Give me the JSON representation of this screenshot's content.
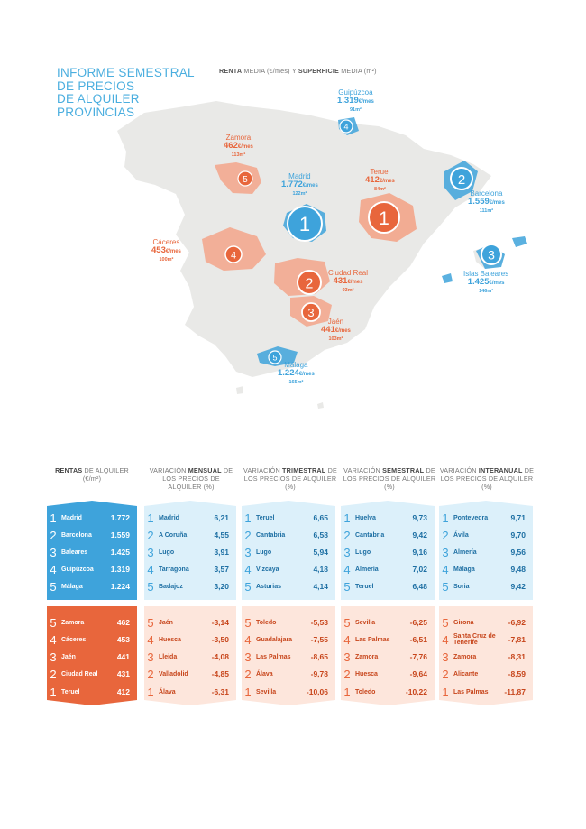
{
  "title_lines": [
    "INFORME SEMESTRAL",
    "DE PRECIOS",
    "DE ALQUILER",
    "PROVINCIAS"
  ],
  "subtitle": {
    "renta": "RENTA",
    "media1": " MEDIA (€/mes) Y ",
    "superficie": "SUPERFICIE",
    "media2": " MEDIA (m²)"
  },
  "colors": {
    "blue": "#3ea3db",
    "orange": "#e8663c",
    "light_blue": "#dcf0fa",
    "light_orange": "#fde6dc",
    "map_gray": "#e9e9e7"
  },
  "map_labels": [
    {
      "id": "guipuzcoa",
      "color": "blue",
      "name": "Guipúzcoa",
      "price": "1.319",
      "unit": "€/mes",
      "size": "91m²",
      "rank": "4"
    },
    {
      "id": "zamora",
      "color": "orange",
      "name": "Zamora",
      "price": "462",
      "unit": "€/mes",
      "size": "113m²",
      "rank": "5"
    },
    {
      "id": "madrid",
      "color": "blue",
      "name": "Madrid",
      "price": "1.772",
      "unit": "€/mes",
      "size": "122m²",
      "rank": "1"
    },
    {
      "id": "teruel",
      "color": "orange",
      "name": "Teruel",
      "price": "412",
      "unit": "€/mes",
      "size": "84m²",
      "rank": "1"
    },
    {
      "id": "barcelona",
      "color": "blue",
      "name": "Barcelona",
      "price": "1.559",
      "unit": "€/mes",
      "size": "111m²",
      "rank": "2"
    },
    {
      "id": "caceres",
      "color": "orange",
      "name": "Cáceres",
      "price": "453",
      "unit": "€/mes",
      "size": "100m²",
      "rank": "4"
    },
    {
      "id": "baleares",
      "color": "blue",
      "name": "Islas Baleares",
      "price": "1.425",
      "unit": "€/mes",
      "size": "146m²",
      "rank": "3"
    },
    {
      "id": "ciudadreal",
      "color": "orange",
      "name": "Ciudad Real",
      "price": "431",
      "unit": "€/mes",
      "size": "93m²",
      "rank": "2"
    },
    {
      "id": "jaen",
      "color": "orange",
      "name": "Jaén",
      "price": "441",
      "unit": "€/mes",
      "size": "103m²",
      "rank": "3"
    },
    {
      "id": "malaga",
      "color": "blue",
      "name": "Málaga",
      "price": "1.224",
      "unit": "€/mes",
      "size": "165m²",
      "rank": "5"
    }
  ],
  "columns": [
    {
      "header": {
        "pre": "",
        "bold": "RENTAS",
        "post": " DE ALQUILER (€/m²)"
      },
      "top": [
        [
          "1",
          "Madrid",
          "1.772"
        ],
        [
          "2",
          "Barcelona",
          "1.559"
        ],
        [
          "3",
          "Baleares",
          "1.425"
        ],
        [
          "4",
          "Guipúzcoa",
          "1.319"
        ],
        [
          "5",
          "Málaga",
          "1.224"
        ]
      ],
      "bottom": [
        [
          "5",
          "Zamora",
          "462"
        ],
        [
          "4",
          "Cáceres",
          "453"
        ],
        [
          "3",
          "Jaén",
          "441"
        ],
        [
          "2",
          "Ciudad Real",
          "431"
        ],
        [
          "1",
          "Teruel",
          "412"
        ]
      ]
    },
    {
      "header": {
        "pre": "VARIACIÓN ",
        "bold": "MENSUAL",
        "post": " DE LOS PRECIOS DE ALQUILER (%)"
      },
      "top": [
        [
          "1",
          "Madrid",
          "6,21"
        ],
        [
          "2",
          "A Coruña",
          "4,55"
        ],
        [
          "3",
          "Lugo",
          "3,91"
        ],
        [
          "4",
          "Tarragona",
          "3,57"
        ],
        [
          "5",
          "Badajoz",
          "3,20"
        ]
      ],
      "bottom": [
        [
          "5",
          "Jaén",
          "-3,14"
        ],
        [
          "4",
          "Huesca",
          "-3,50"
        ],
        [
          "3",
          "Lleida",
          "-4,08"
        ],
        [
          "2",
          "Valladolid",
          "-4,85"
        ],
        [
          "1",
          "Álava",
          "-6,31"
        ]
      ]
    },
    {
      "header": {
        "pre": "VARIACIÓN ",
        "bold": "TRIMESTRAL",
        "post": " DE LOS PRECIOS DE ALQUILER (%)"
      },
      "top": [
        [
          "1",
          "Teruel",
          "6,65"
        ],
        [
          "2",
          "Cantabria",
          "6,58"
        ],
        [
          "3",
          "Lugo",
          "5,94"
        ],
        [
          "4",
          "Vizcaya",
          "4,18"
        ],
        [
          "5",
          "Asturias",
          "4,14"
        ]
      ],
      "bottom": [
        [
          "5",
          "Toledo",
          "-5,53"
        ],
        [
          "4",
          "Guadalajara",
          "-7,55"
        ],
        [
          "3",
          "Las Palmas",
          "-8,65"
        ],
        [
          "2",
          "Álava",
          "-9,78"
        ],
        [
          "1",
          "Sevilla",
          "-10,06"
        ]
      ]
    },
    {
      "header": {
        "pre": "VARIACIÓN ",
        "bold": "SEMESTRAL",
        "post": " DE LOS PRECIOS DE ALQUILER (%)"
      },
      "top": [
        [
          "1",
          "Huelva",
          "9,73"
        ],
        [
          "2",
          "Cantabria",
          "9,42"
        ],
        [
          "3",
          "Lugo",
          "9,16"
        ],
        [
          "4",
          "Almería",
          "7,02"
        ],
        [
          "5",
          "Teruel",
          "6,48"
        ]
      ],
      "bottom": [
        [
          "5",
          "Sevilla",
          "-6,25"
        ],
        [
          "4",
          "Las Palmas",
          "-6,51"
        ],
        [
          "3",
          "Zamora",
          "-7,76"
        ],
        [
          "2",
          "Huesca",
          "-9,64"
        ],
        [
          "1",
          "Toledo",
          "-10,22"
        ]
      ]
    },
    {
      "header": {
        "pre": "VARIACIÓN ",
        "bold": "INTERANUAL",
        "post": " DE LOS PRECIOS DE ALQUILER (%)"
      },
      "top": [
        [
          "1",
          "Pontevedra",
          "9,71"
        ],
        [
          "2",
          "Ávila",
          "9,70"
        ],
        [
          "3",
          "Almería",
          "9,56"
        ],
        [
          "4",
          "Málaga",
          "9,48"
        ],
        [
          "5",
          "Soria",
          "9,42"
        ]
      ],
      "bottom": [
        [
          "5",
          "Girona",
          "-6,92"
        ],
        [
          "4",
          "Santa Cruz de Tenerife",
          "-7,81"
        ],
        [
          "3",
          "Zamora",
          "-8,31"
        ],
        [
          "2",
          "Alicante",
          "-8,59"
        ],
        [
          "1",
          "Las Palmas",
          "-11,87"
        ]
      ]
    }
  ]
}
